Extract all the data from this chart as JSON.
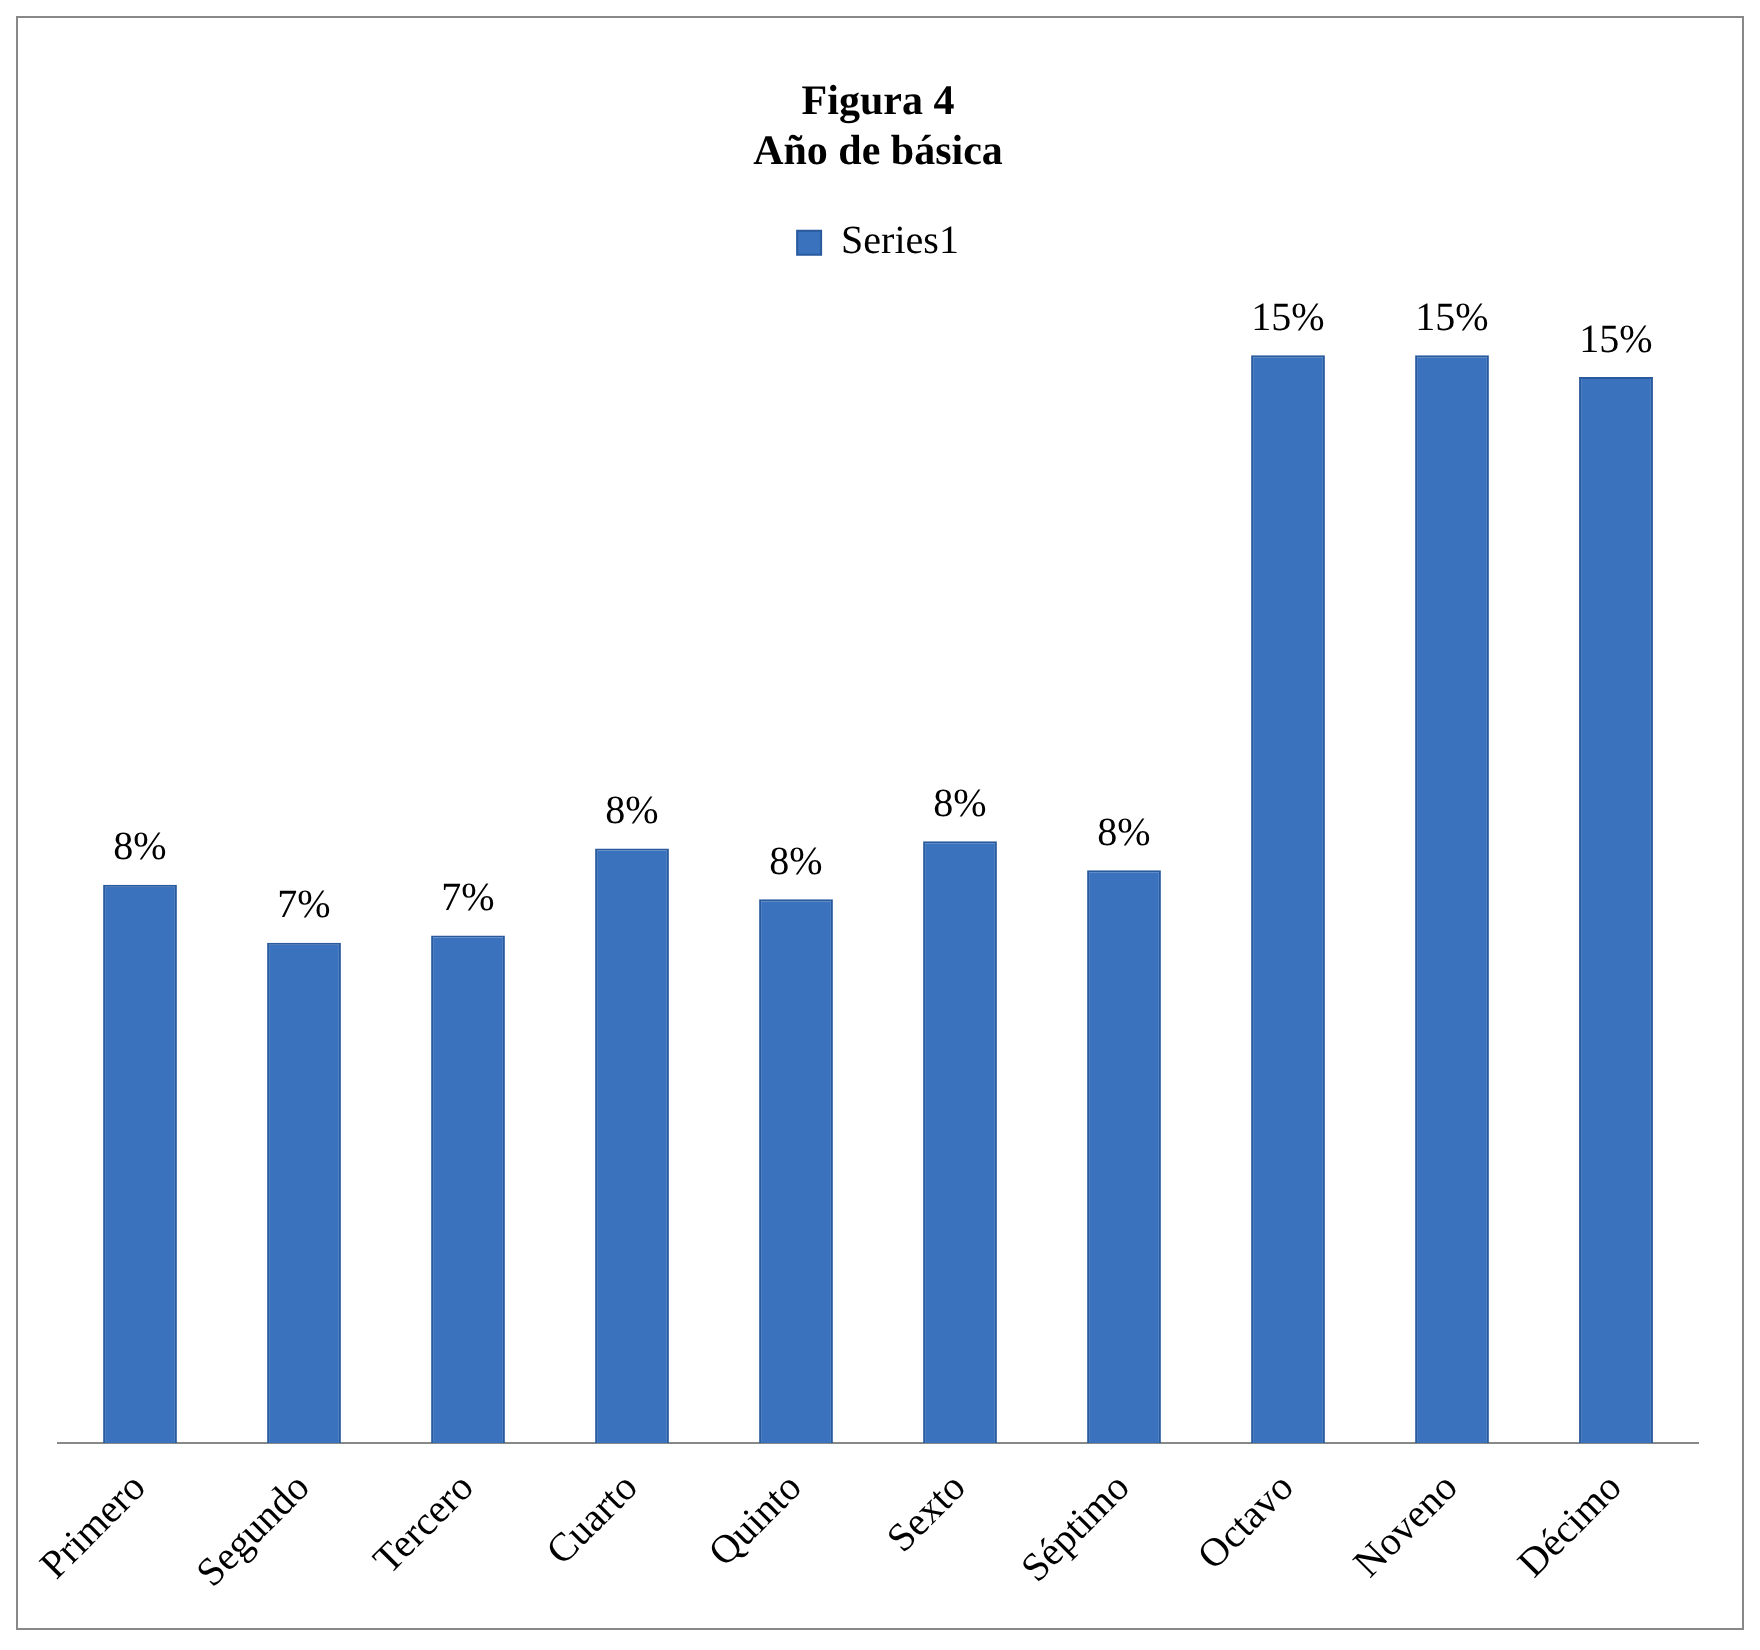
{
  "chart_data": {
    "type": "bar",
    "title": "Figura 4\nAño de básica",
    "categories": [
      "Primero",
      "Segundo",
      "Tercero",
      "Cuarto",
      "Quinto",
      "Sexto",
      "Séptimo",
      "Octavo",
      "Noveno",
      "Décimo"
    ],
    "series": [
      {
        "name": "Series1",
        "color": "#3a72be",
        "values": [
          7.7,
          6.9,
          7.0,
          8.2,
          7.5,
          8.3,
          7.9,
          15.0,
          15.0,
          14.7
        ],
        "value_labels": [
          "8%",
          "7%",
          "7%",
          "8%",
          "8%",
          "8%",
          "8%",
          "15%",
          "15%",
          "15%"
        ]
      }
    ],
    "legend": "top",
    "grid": false
  }
}
